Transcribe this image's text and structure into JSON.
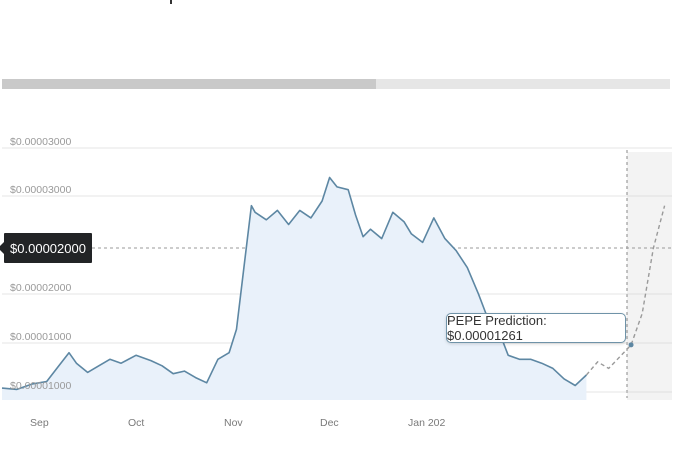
{
  "progress": {
    "fraction": 0.56
  },
  "price_tag": {
    "label": "$0.00002000"
  },
  "prediction": {
    "label": "PEPE Prediction: $0.00001261"
  },
  "colors": {
    "line": "#5d87a3",
    "area": "#e9f1fa",
    "forecast_line": "#9a9a9a",
    "forecast_bg": "#f3f3f3",
    "grid": "#cccccc"
  },
  "chart_data": {
    "type": "area",
    "title": "",
    "xlabel": "",
    "ylabel": "",
    "y_tick_labels": [
      "$0.00003000",
      "$0.00003000",
      "$0.00002000",
      "$0.00001000",
      "$0.00001000"
    ],
    "x_tick_labels": [
      "Sep",
      "Oct",
      "Nov",
      "Dec",
      "Jan 202"
    ],
    "grid": true,
    "series": [
      {
        "x": [
          "2023-08-25",
          "2023-08-29",
          "2023-09-02",
          "2023-09-06",
          "2023-09-09",
          "2023-09-12",
          "2023-09-14",
          "2023-09-17",
          "2023-09-20",
          "2023-09-23",
          "2023-09-26",
          "2023-09-30",
          "2023-10-04",
          "2023-10-07",
          "2023-10-10",
          "2023-10-13",
          "2023-10-16",
          "2023-10-19",
          "2023-10-22",
          "2023-10-25",
          "2023-10-27",
          "2023-10-29",
          "2023-10-31",
          "2023-11-01",
          "2023-11-04",
          "2023-11-07",
          "2023-11-10",
          "2023-11-13",
          "2023-11-16",
          "2023-11-19",
          "2023-11-21",
          "2023-11-23",
          "2023-11-26",
          "2023-11-28",
          "2023-11-30",
          "2023-12-02",
          "2023-12-05",
          "2023-12-08",
          "2023-12-11",
          "2023-12-13",
          "2023-12-16",
          "2023-12-19",
          "2023-12-22",
          "2023-12-25",
          "2023-12-28",
          "2023-12-31",
          "2024-01-02",
          "2024-01-05",
          "2024-01-08",
          "2024-01-11",
          "2024-01-14",
          "2024-01-17",
          "2024-01-20",
          "2024-01-23",
          "2024-01-26",
          "2024-01-29",
          "2024-02-01",
          "2024-02-04",
          "2024-02-07",
          "2024-02-10",
          "2024-02-13",
          "2024-02-16",
          "2024-02-19"
        ],
        "y": [
          9.3e-06,
          9.2e-06,
          9.6e-06,
          9.8e-06,
          1.09e-05,
          1.2e-05,
          1.12e-05,
          1.05e-05,
          1.1e-05,
          1.15e-05,
          1.12e-05,
          1.18e-05,
          1.14e-05,
          1.1e-05,
          1.04e-05,
          1.06e-05,
          1.01e-05,
          9.7e-06,
          1.15e-05,
          1.2e-05,
          1.38e-05,
          1.85e-05,
          2.45e-05,
          2.38e-05,
          2.3e-05,
          2.4e-05,
          2.25e-05,
          2.4e-05,
          2.32e-05,
          2.5e-05,
          2.75e-05,
          2.65e-05,
          2.62e-05,
          2.35e-05,
          2.12e-05,
          2.2e-05,
          2.1e-05,
          2.38e-05,
          2.28e-05,
          2.15e-05,
          2.06e-05,
          2.32e-05,
          2.1e-05,
          1.98e-05,
          1.85e-05,
          1.65e-05,
          1.5e-05,
          1.4e-05,
          1.18e-05,
          1.15e-05,
          1.15e-05,
          1.12e-05,
          1.08e-05,
          1e-05,
          9.5e-06,
          1.03e-05,
          1.13e-05,
          1.08e-05,
          1.17e-05,
          1.26e-05,
          1.5e-05,
          2e-05,
          2.45e-05
        ]
      }
    ]
  }
}
